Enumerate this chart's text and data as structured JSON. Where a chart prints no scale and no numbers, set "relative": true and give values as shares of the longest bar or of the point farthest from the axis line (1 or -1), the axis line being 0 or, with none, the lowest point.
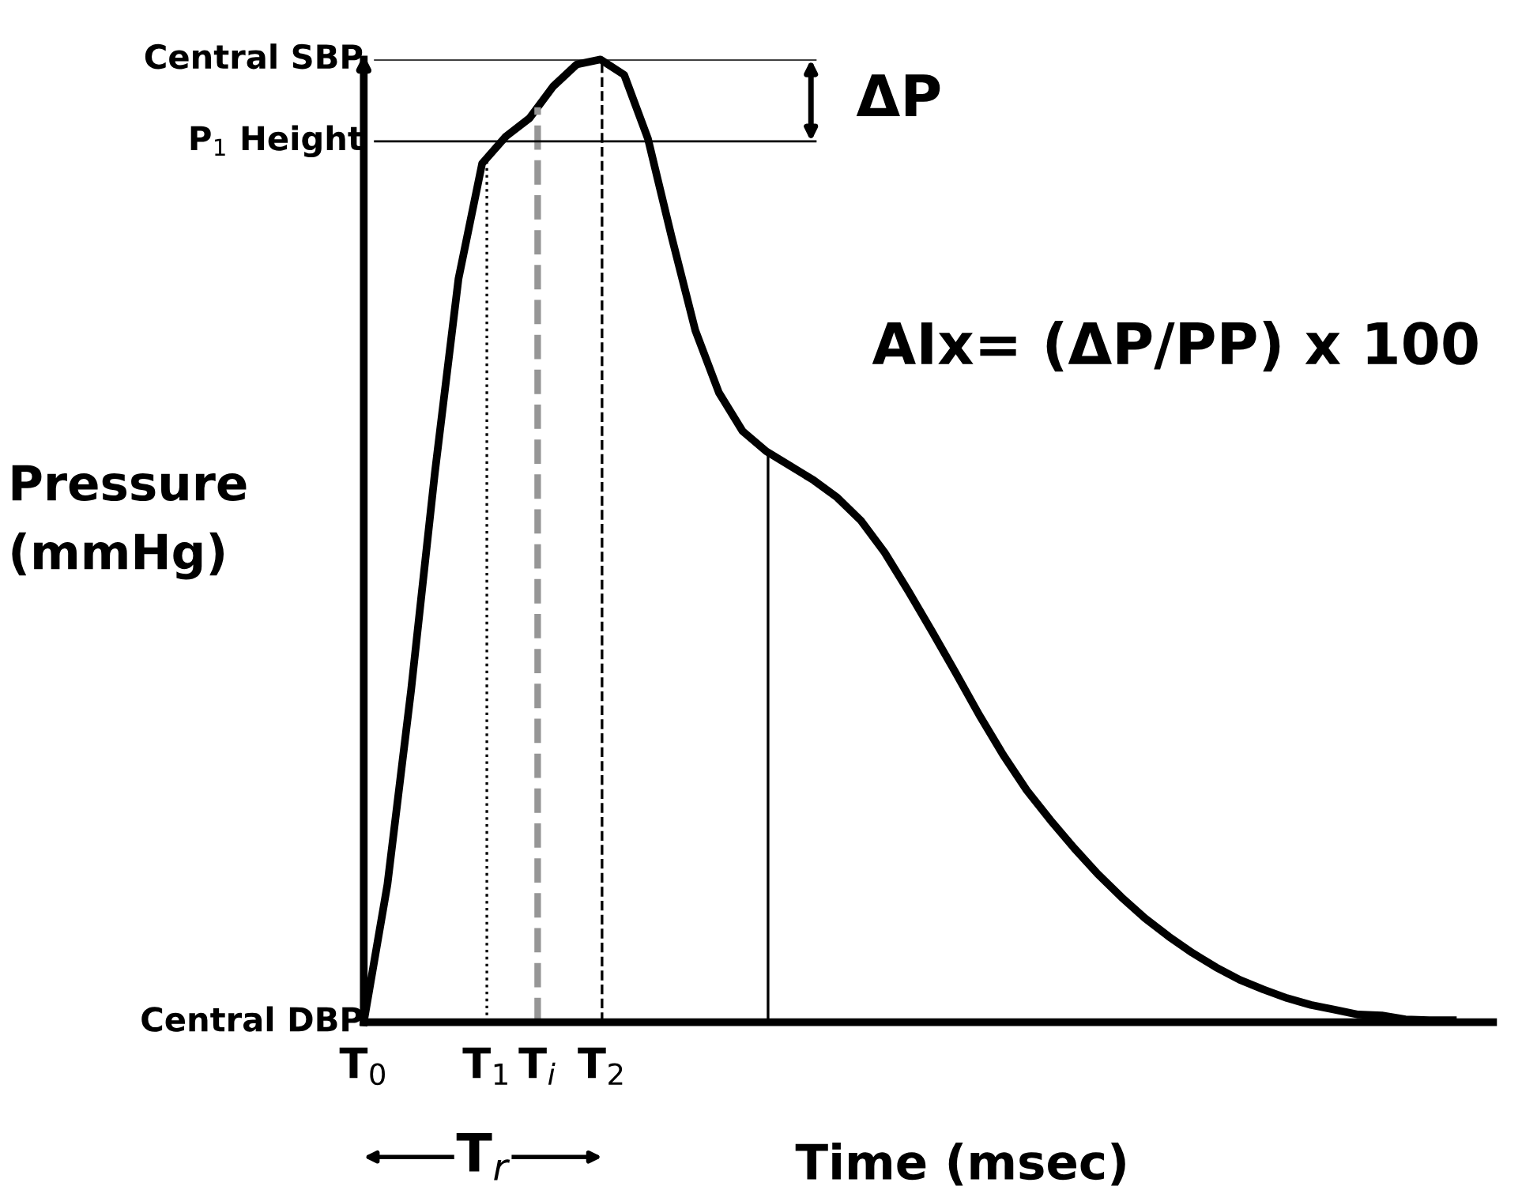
{
  "chart_data": {
    "type": "line",
    "relative": true,
    "xlabel": "Time (msec)",
    "ylabel": "Pressure\n(mmHg)",
    "categories": [
      null,
      null,
      null,
      null,
      null,
      null,
      null,
      null,
      null,
      null,
      null,
      null,
      null,
      null,
      null,
      null,
      null,
      null,
      null,
      null,
      null,
      null,
      null,
      null,
      null,
      null,
      null,
      null,
      null,
      null,
      null,
      null,
      null,
      null,
      null,
      null,
      null,
      null,
      null,
      null,
      null,
      null,
      null,
      null,
      null,
      null,
      null
    ],
    "series": [
      {
        "color": "#000000",
        "values": [
          0,
          0.143,
          0.345,
          0.57,
          0.772,
          0.892,
          0.92,
          0.939,
          0.972,
          0.995,
          1.0,
          0.984,
          0.918,
          0.816,
          0.719,
          0.654,
          0.614,
          0.593,
          0.578,
          0.563,
          0.545,
          0.521,
          0.488,
          0.448,
          0.406,
          0.363,
          0.319,
          0.278,
          0.241,
          0.21,
          0.181,
          0.154,
          0.13,
          0.108,
          0.089,
          0.072,
          0.057,
          0.044,
          0.034,
          0.025,
          0.018,
          0.013,
          0.008,
          0.007,
          0.003,
          0.002,
          0.002
        ]
      }
    ],
    "ref_lines": [
      {
        "axis": "y",
        "value": 1,
        "label": "Central SBP",
        "color": "#000000",
        "line_style": "solid"
      },
      {
        "axis": "y",
        "value": 0.915,
        "label": "P$_{1}$ Height",
        "color": "#000000",
        "line_style": "solid"
      },
      {
        "axis": "y",
        "value": 0,
        "label": "Central DBP",
        "color": "#000000",
        "line_style": "solid"
      }
    ],
    "annotations": [
      "ΔP",
      "AIx= (ΔP/PP) x 100",
      "T$_{r}$",
      "T$_{0}$",
      "T$_{1}$",
      "T$_{i}$",
      "T$_{2}$"
    ],
    "legend": false,
    "marker": "none",
    "line_style": "solid"
  }
}
